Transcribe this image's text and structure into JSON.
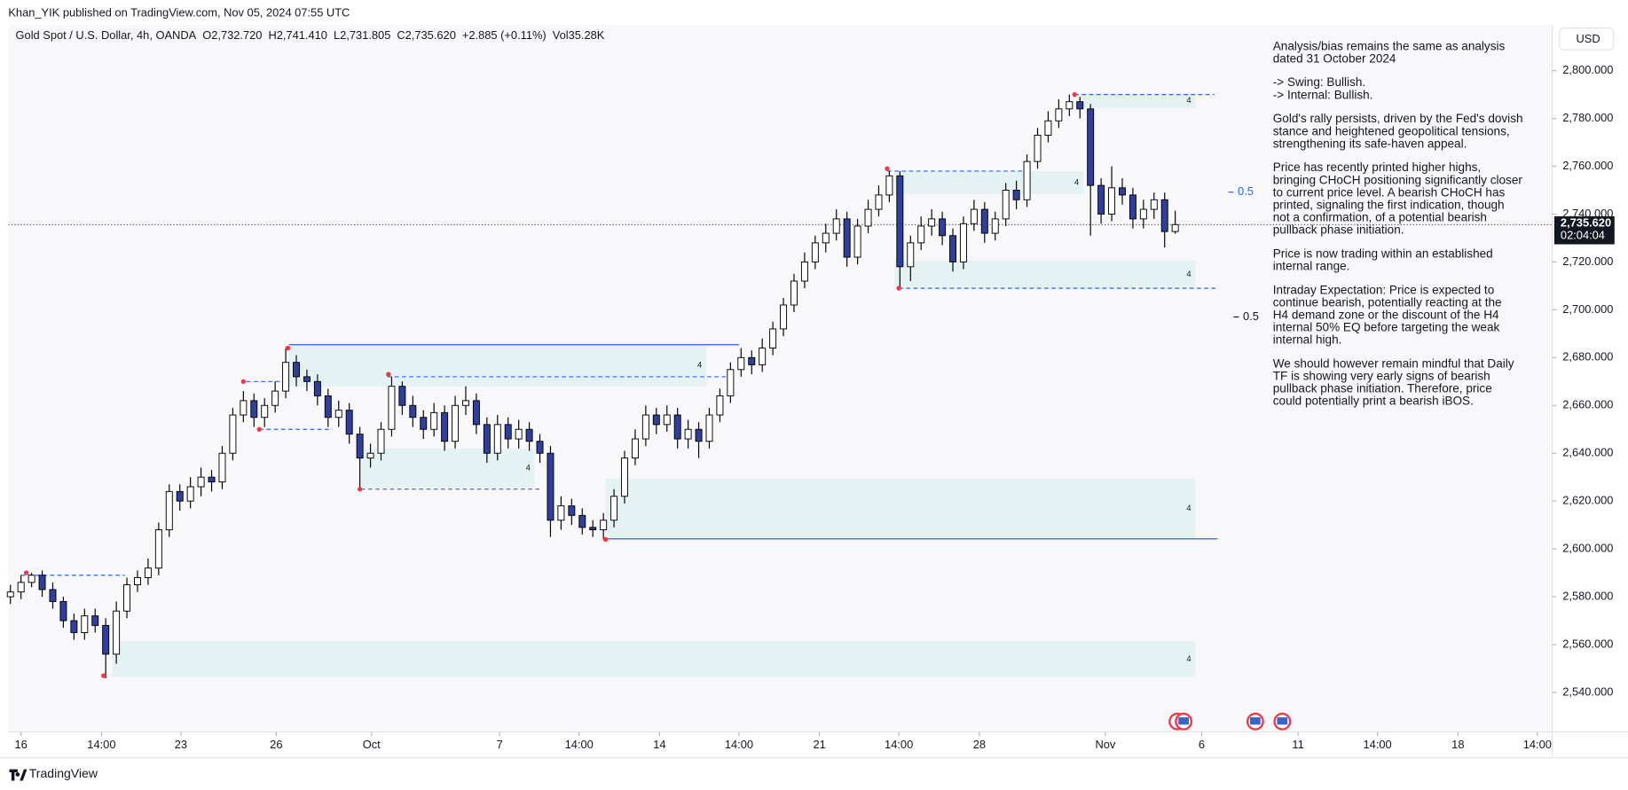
{
  "header": {
    "publisher": "Khan_YIK published on TradingView.com, Nov 05, 2024 07:55 UTC",
    "logo": "TradingView",
    "currency": "USD"
  },
  "chart_data": {
    "type": "candlestick",
    "title": "Gold Spot / U.S. Dollar, 4h, OANDA",
    "ohlc_legend": [
      {
        "key": "O",
        "value": "2,732.720"
      },
      {
        "key": "H",
        "value": "2,741.410"
      },
      {
        "key": "L",
        "value": "2,731.805"
      },
      {
        "key": "C",
        "value": "2,735.620"
      }
    ],
    "change": "+2.885 (+0.11%)",
    "volume": {
      "key": "Vol",
      "value": "35.28K"
    },
    "open": [
      2580,
      2582,
      2586,
      2589,
      2583,
      2578,
      2570,
      2565,
      2572,
      2568,
      2556,
      2574,
      2585,
      2588,
      2592,
      2608,
      2624,
      2620,
      2626,
      2630,
      2628,
      2640,
      2656,
      2662,
      2655,
      2660,
      2666,
      2678,
      2672,
      2670,
      2664,
      2655,
      2658,
      2648,
      2638,
      2640,
      2650,
      2668,
      2660,
      2655,
      2650,
      2657,
      2645,
      2660,
      2662,
      2652,
      2640,
      2652,
      2646,
      2650,
      2645,
      2640,
      2612,
      2618,
      2614,
      2609,
      2608,
      2612,
      2622,
      2638,
      2646,
      2656,
      2652,
      2656,
      2646,
      2650,
      2645,
      2656,
      2664,
      2675,
      2680,
      2677,
      2684,
      2692,
      2702,
      2712,
      2720,
      2728,
      2732,
      2738,
      2722,
      2735,
      2742,
      2748,
      2756,
      2718,
      2728,
      2735,
      2738,
      2731,
      2720,
      2736,
      2742,
      2732,
      2738,
      2750,
      2746,
      2762,
      2773,
      2779,
      2784,
      2787,
      2784,
      2752,
      2740,
      2751,
      2748,
      2738,
      2742,
      2746,
      2732.72
    ],
    "high": [
      2585,
      2589,
      2590,
      2591,
      2586,
      2580,
      2573,
      2575,
      2575,
      2571,
      2578,
      2588,
      2591,
      2596,
      2611,
      2627,
      2627,
      2630,
      2634,
      2633,
      2643,
      2659,
      2666,
      2665,
      2663,
      2670,
      2684,
      2681,
      2675,
      2673,
      2667,
      2662,
      2661,
      2651,
      2644,
      2653,
      2672,
      2670,
      2664,
      2658,
      2661,
      2660,
      2664,
      2668,
      2665,
      2655,
      2656,
      2655,
      2654,
      2653,
      2648,
      2643,
      2622,
      2621,
      2617,
      2612,
      2615,
      2625,
      2641,
      2650,
      2660,
      2659,
      2660,
      2659,
      2654,
      2653,
      2659,
      2667,
      2678,
      2684,
      2683,
      2688,
      2695,
      2705,
      2715,
      2724,
      2731,
      2736,
      2742,
      2741,
      2738,
      2746,
      2752,
      2758,
      2758,
      2731,
      2739,
      2742,
      2741,
      2734,
      2739,
      2746,
      2745,
      2741,
      2753,
      2754,
      2765,
      2776,
      2783,
      2788,
      2790,
      2789,
      2786,
      2755,
      2760,
      2755,
      2751,
      2746,
      2749,
      2749,
      2741.41
    ],
    "low": [
      2577,
      2579,
      2584,
      2580,
      2575,
      2567,
      2562,
      2562,
      2565,
      2546,
      2552,
      2571,
      2582,
      2585,
      2589,
      2605,
      2616,
      2617,
      2622,
      2624,
      2625,
      2637,
      2653,
      2651,
      2651,
      2657,
      2663,
      2668,
      2666,
      2660,
      2651,
      2651,
      2644,
      2625,
      2634,
      2637,
      2647,
      2656,
      2651,
      2646,
      2647,
      2641,
      2642,
      2656,
      2648,
      2636,
      2637,
      2642,
      2642,
      2641,
      2636,
      2605,
      2608,
      2610,
      2606,
      2605,
      2604,
      2609,
      2619,
      2635,
      2643,
      2648,
      2649,
      2642,
      2642,
      2638,
      2642,
      2653,
      2661,
      2672,
      2673,
      2674,
      2681,
      2689,
      2699,
      2709,
      2717,
      2724,
      2729,
      2718,
      2719,
      2732,
      2739,
      2745,
      2709,
      2712,
      2725,
      2731,
      2727,
      2716,
      2717,
      2733,
      2728,
      2729,
      2735,
      2742,
      2743,
      2759,
      2770,
      2776,
      2781,
      2780,
      2731,
      2736,
      2737,
      2744,
      2734,
      2734,
      2738,
      2726,
      2731.805
    ],
    "close": [
      2582,
      2586,
      2589,
      2583,
      2578,
      2570,
      2565,
      2572,
      2568,
      2556,
      2574,
      2585,
      2588,
      2592,
      2608,
      2624,
      2620,
      2626,
      2630,
      2628,
      2640,
      2656,
      2662,
      2655,
      2660,
      2666,
      2678,
      2672,
      2670,
      2664,
      2655,
      2658,
      2648,
      2638,
      2640,
      2650,
      2668,
      2660,
      2655,
      2650,
      2657,
      2645,
      2660,
      2662,
      2652,
      2640,
      2652,
      2646,
      2650,
      2645,
      2640,
      2612,
      2618,
      2614,
      2609,
      2608,
      2612,
      2622,
      2638,
      2646,
      2656,
      2652,
      2656,
      2646,
      2650,
      2645,
      2656,
      2664,
      2675,
      2680,
      2677,
      2684,
      2692,
      2702,
      2712,
      2720,
      2728,
      2732,
      2738,
      2722,
      2735,
      2742,
      2748,
      2756,
      2718,
      2728,
      2735,
      2738,
      2731,
      2720,
      2736,
      2742,
      2732,
      2738,
      2750,
      2746,
      2762,
      2773,
      2779,
      2784,
      2787,
      2784,
      2752,
      2740,
      2751,
      2748,
      2738,
      2742,
      2746,
      2732.72,
      2735.62
    ],
    "up_color": "#ffffff",
    "down_color": "#2f3f9f",
    "wick_color": "#000000",
    "xlim": [
      -0.2,
      145.6
    ],
    "xticks": [
      {
        "value": 1.0,
        "label": "16"
      },
      {
        "value": 8.6,
        "label": "14:00"
      },
      {
        "value": 16.1,
        "label": "23"
      },
      {
        "value": 25.1,
        "label": "26"
      },
      {
        "value": 34.1,
        "label": "Oct"
      },
      {
        "value": 46.2,
        "label": "7"
      },
      {
        "value": 53.7,
        "label": "14:00"
      },
      {
        "value": 61.3,
        "label": "14"
      },
      {
        "value": 68.8,
        "label": "14:00"
      },
      {
        "value": 76.4,
        "label": "21"
      },
      {
        "value": 83.9,
        "label": "14:00"
      },
      {
        "value": 91.5,
        "label": "28"
      },
      {
        "value": 103.4,
        "label": "Nov"
      },
      {
        "value": 112.5,
        "label": "6"
      },
      {
        "value": 121.6,
        "label": "11"
      },
      {
        "value": 129.1,
        "label": "14:00"
      },
      {
        "value": 136.7,
        "label": "18"
      },
      {
        "value": 144.2,
        "label": "14:00"
      }
    ],
    "ylim": [
      2523.5,
      2810
    ],
    "yticks": [
      {
        "value": 2540,
        "label": "2,540.000"
      },
      {
        "value": 2560,
        "label": "2,560.000"
      },
      {
        "value": 2580,
        "label": "2,580.000"
      },
      {
        "value": 2600,
        "label": "2,600.000"
      },
      {
        "value": 2620,
        "label": "2,620.000"
      },
      {
        "value": 2640,
        "label": "2,640.000"
      },
      {
        "value": 2660,
        "label": "2,660.000"
      },
      {
        "value": 2680,
        "label": "2,680.000"
      },
      {
        "value": 2700,
        "label": "2,700.000"
      },
      {
        "value": 2720,
        "label": "2,720.000"
      },
      {
        "value": 2740,
        "label": "2,740.000"
      },
      {
        "value": 2760,
        "label": "2,760.000"
      },
      {
        "value": 2780,
        "label": "2,780.000"
      },
      {
        "value": 2800,
        "label": "2,800.000"
      }
    ],
    "grid": false,
    "last_price": {
      "value": 2735.62,
      "label": "2,735.620",
      "countdown": "02:04:04"
    },
    "zones": [
      {
        "start": 9.6,
        "end": 111.9,
        "top": 2561.3,
        "bottom": 2546.5,
        "label": "4"
      },
      {
        "start": 56.2,
        "end": 111.9,
        "top": 2629.4,
        "bottom": 2604.2,
        "label": "4"
      },
      {
        "start": 26.3,
        "end": 65.7,
        "top": 2685.4,
        "bottom": 2668.0,
        "label": "4"
      },
      {
        "start": 33.1,
        "end": 49.5,
        "top": 2642.0,
        "bottom": 2625.5,
        "label": "4"
      },
      {
        "start": 83.5,
        "end": 111.9,
        "top": 2720.6,
        "bottom": 2708.8,
        "label": "4"
      },
      {
        "start": 83.5,
        "end": 101.3,
        "top": 2757.9,
        "bottom": 2748.3,
        "label": "4"
      },
      {
        "start": 100.8,
        "end": 111.9,
        "top": 2790.4,
        "bottom": 2784.4,
        "label": "4"
      }
    ],
    "levels": [
      {
        "value": 2685.4,
        "start": 26.3,
        "end": 68.8,
        "style": "solid"
      },
      {
        "value": 2604.2,
        "start": 56.2,
        "end": 114.0,
        "style": "solid"
      },
      {
        "value": 2589,
        "start": 1.0,
        "end": 10.8,
        "style": "dashed"
      },
      {
        "value": 2670,
        "start": 22.3,
        "end": 26.0,
        "style": "dashed"
      },
      {
        "value": 2650,
        "start": 23.5,
        "end": 30.4,
        "style": "dashed"
      },
      {
        "value": 2672,
        "start": 35.6,
        "end": 67.7,
        "style": "dashed"
      },
      {
        "value": 2625,
        "start": 33.1,
        "end": 50.0,
        "style": "dashed"
      },
      {
        "value": 2758,
        "start": 82.8,
        "end": 96.1,
        "style": "dashed"
      },
      {
        "value": 2709,
        "start": 83.9,
        "end": 114.0,
        "style": "dashed"
      },
      {
        "value": 2790,
        "start": 100.5,
        "end": 113.7,
        "style": "dashed"
      }
    ],
    "level_color": "#2962ff",
    "pivots": [
      {
        "x": 1.5,
        "value": 2590
      },
      {
        "x": 8.8,
        "value": 2547
      },
      {
        "x": 22.0,
        "value": 2670
      },
      {
        "x": 23.5,
        "value": 2650
      },
      {
        "x": 26.2,
        "value": 2684
      },
      {
        "x": 33.0,
        "value": 2625
      },
      {
        "x": 35.7,
        "value": 2673
      },
      {
        "x": 56.2,
        "value": 2604
      },
      {
        "x": 82.8,
        "value": 2759
      },
      {
        "x": 83.9,
        "value": 2709
      },
      {
        "x": 100.5,
        "value": 2790
      }
    ],
    "pivot_color": "#f23645",
    "eq_levels": [
      {
        "x": 115.7,
        "value": 2749.2,
        "label": "0.5",
        "color": "#2962ff"
      },
      {
        "x": 116.2,
        "value": 2697.0,
        "label": "0.5",
        "color": "#131722"
      }
    ],
    "note": [
      [
        "Analysis/bias remains the same as analysis",
        "dated 31 October 2024"
      ],
      [
        "-> Swing:  Bullish.",
        "-> Internal:  Bullish."
      ],
      [
        "Gold's rally persists, driven by the Fed's dovish",
        "stance and heightened geopolitical tensions,",
        "strengthening its safe-haven appeal."
      ],
      [
        "Price has recently printed higher highs,",
        "bringing CHoCH positioning significantly closer",
        "to current price level. A bearish CHoCH has",
        "printed, signaling the first indication, though",
        "not a confirmation, of a potential bearish",
        "pullback phase initiation."
      ],
      [
        "Price is now trading within an established",
        "internal range."
      ],
      [
        "Intraday Expectation: Price is expected to",
        "continue bearish, potentially reacting at the",
        "H4 demand zone or the discount of the H4",
        "internal 50% EQ before targeting the weak",
        "internal high."
      ],
      [
        "We should however remain mindful that Daily",
        "TF is showing very early signs of bearish",
        "pullback phase initiation. Therefore, price",
        "could potentially print a bearish iBOS."
      ]
    ]
  }
}
